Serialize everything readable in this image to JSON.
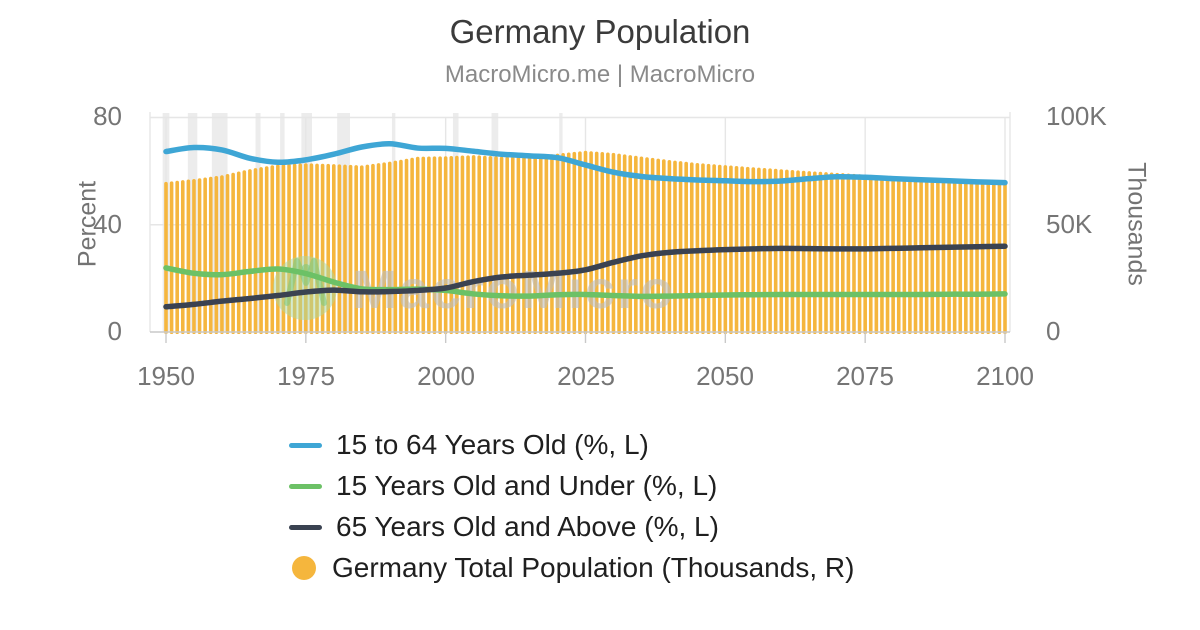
{
  "header": {
    "title": "Germany Population",
    "subtitle": "MacroMicro.me | MacroMicro"
  },
  "watermark": {
    "text": "MacroMicro",
    "logo": "macromicro-m-logo"
  },
  "axes": {
    "left": {
      "title": "Percent",
      "ticks": [
        "80",
        "40",
        "0"
      ]
    },
    "right": {
      "title": "Thousands",
      "ticks": [
        "100K",
        "50K",
        "0"
      ]
    },
    "x": {
      "ticks": [
        "1950",
        "1975",
        "2000",
        "2025",
        "2050",
        "2075",
        "2100"
      ]
    }
  },
  "colors": {
    "bar_orange": "#F5B63D",
    "line_blue": "#3EA6D5",
    "line_green": "#6CC166",
    "line_dark": "#3A4251",
    "gridline": "#E6E6E6",
    "axis_line": "#C9C9C9",
    "tick_text": "#757575",
    "recession_band": "#ECECEC"
  },
  "chart_data": {
    "type": "combo",
    "x_years": [
      1950,
      1955,
      1960,
      1965,
      1970,
      1975,
      1980,
      1985,
      1990,
      1995,
      2000,
      2005,
      2010,
      2015,
      2020,
      2025,
      2030,
      2035,
      2040,
      2045,
      2050,
      2055,
      2060,
      2065,
      2070,
      2075,
      2080,
      2085,
      2090,
      2095,
      2100
    ],
    "x_range": [
      1950,
      2100
    ],
    "ylim_left": [
      0,
      80
    ],
    "ylim_right": [
      0,
      100000
    ],
    "ylabel_left": "Percent",
    "ylabel_right": "Thousands",
    "grid": true,
    "legend_position": "bottom",
    "series": [
      {
        "name": "15 to 64 Years Old (%, L)",
        "type": "line",
        "axis": "left",
        "color": "#3EA6D5",
        "values": [
          67.3,
          68.8,
          67.9,
          64.8,
          63.3,
          64.2,
          66.3,
          69.0,
          70.2,
          68.6,
          68.5,
          67.4,
          66.3,
          65.7,
          65.0,
          62.3,
          59.6,
          58.0,
          57.2,
          56.7,
          56.4,
          56.1,
          56.3,
          57.2,
          57.9,
          57.7,
          57.2,
          56.8,
          56.4,
          56.0,
          55.7
        ]
      },
      {
        "name": "15 Years Old and Under (%, L)",
        "type": "line",
        "axis": "left",
        "color": "#6CC166",
        "values": [
          23.9,
          21.9,
          21.4,
          22.6,
          23.5,
          21.8,
          18.6,
          16.1,
          15.8,
          16.0,
          15.5,
          14.2,
          13.5,
          13.4,
          13.9,
          14.0,
          13.6,
          13.3,
          13.4,
          13.6,
          13.8,
          13.9,
          14.0,
          14.0,
          14.0,
          14.0,
          14.0,
          14.0,
          14.1,
          14.1,
          14.2
        ]
      },
      {
        "name": "65 Years Old and Above (%, L)",
        "type": "line",
        "axis": "left",
        "color": "#3A4251",
        "values": [
          9.4,
          10.3,
          11.5,
          12.5,
          13.6,
          14.9,
          15.6,
          15.0,
          15.1,
          15.5,
          16.4,
          18.8,
          20.5,
          21.2,
          21.9,
          23.2,
          26.0,
          28.4,
          29.7,
          30.3,
          30.7,
          31.0,
          31.2,
          31.1,
          31.0,
          31.0,
          31.2,
          31.4,
          31.6,
          31.8,
          32.0
        ]
      },
      {
        "name": "Germany Total Population (Thousands, R)",
        "type": "bar",
        "axis": "right",
        "color": "#F5B63D",
        "bar_interval_years": 1,
        "values": [
          69966,
          71350,
          73100,
          75960,
          78170,
          78670,
          78290,
          77680,
          79430,
          81680,
          81960,
          82470,
          81780,
          81690,
          83160,
          84480,
          83500,
          81800,
          80200,
          78800,
          77800,
          76800,
          75900,
          75000,
          74200,
          73400,
          72600,
          71900,
          71200,
          70700,
          70300
        ]
      }
    ],
    "shaded_periods": [
      [
        1949.4,
        1950.6
      ],
      [
        1953.9,
        1955.6
      ],
      [
        1958.2,
        1961.0
      ],
      [
        1966.0,
        1966.9
      ],
      [
        1970.4,
        1971.2
      ],
      [
        1974.2,
        1976.1
      ],
      [
        1980.6,
        1982.9
      ],
      [
        1990.4,
        1991.0
      ],
      [
        2001.3,
        2002.3
      ],
      [
        2008.2,
        2009.4
      ],
      [
        2020.3,
        2020.9
      ]
    ]
  }
}
